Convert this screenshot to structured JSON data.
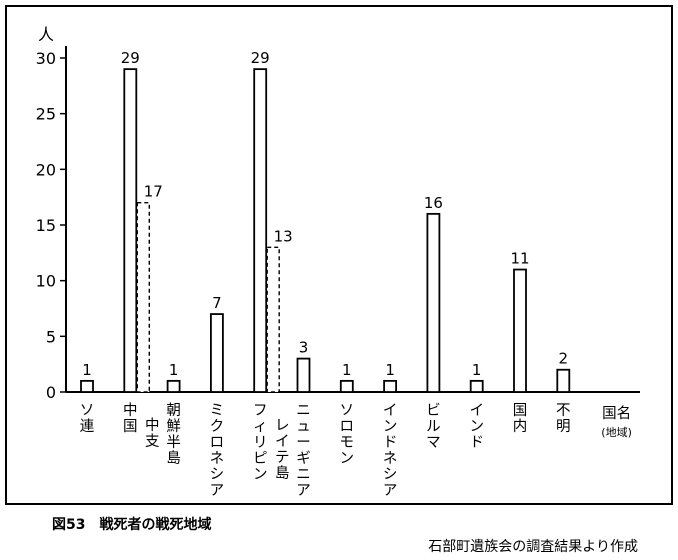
{
  "caption": "図53　戦死者の戦死地域",
  "source": "石部町遺族会の調査結果より作成",
  "chart_data": {
    "type": "bar",
    "y_unit": "人",
    "y_ticks": [
      0,
      5,
      10,
      15,
      20,
      25,
      30
    ],
    "ylim": [
      0,
      30
    ],
    "grid": false,
    "categories": [
      {
        "label": "ソ連",
        "values": [
          1
        ]
      },
      {
        "label": "中国",
        "sub_label": "中支",
        "values": [
          29,
          17
        ],
        "second_bar_style": "dashed"
      },
      {
        "label": "朝鮮半島",
        "values": [
          1
        ]
      },
      {
        "label": "ミクロネシア",
        "values": [
          7
        ]
      },
      {
        "label": "フィリピン",
        "sub_label": "レイテ島",
        "values": [
          29,
          13
        ],
        "second_bar_style": "dashed"
      },
      {
        "label": "ニューギニア",
        "values": [
          3
        ]
      },
      {
        "label": "ソロモン",
        "values": [
          1
        ]
      },
      {
        "label": "インドネシア",
        "values": [
          1
        ]
      },
      {
        "label": "ビルマ",
        "values": [
          16
        ]
      },
      {
        "label": "インド",
        "values": [
          1
        ]
      },
      {
        "label": "国内",
        "values": [
          11
        ]
      },
      {
        "label": "不明",
        "values": [
          2
        ]
      }
    ],
    "axis_title": "国名",
    "axis_note": "(地域)"
  }
}
